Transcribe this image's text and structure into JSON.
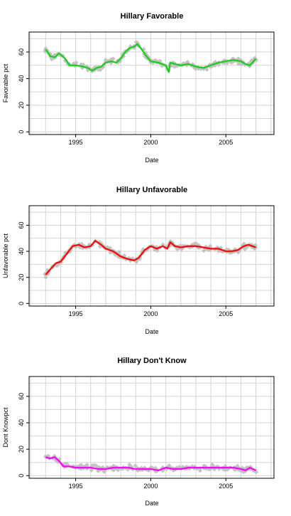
{
  "colors": {
    "points": "#c4c4c4",
    "grid": "#d3d3d3",
    "axis": "#000000",
    "series": [
      "#22cc22",
      "#ee1111",
      "#ee11ee"
    ]
  },
  "chart_data": [
    {
      "type": "scatter",
      "title": "Hillary Favorable",
      "xlabel": "Date",
      "ylabel": "Favorable pct",
      "xlim": [
        1991.9,
        2008.2
      ],
      "ylim": [
        -2,
        75
      ],
      "x_ticks": [
        1995,
        2000,
        2005
      ],
      "y_ticks": [
        0,
        20,
        40,
        60
      ],
      "grid": true,
      "smooth": {
        "x": [
          1993.0,
          1993.3,
          1993.6,
          1993.9,
          1994.3,
          1994.6,
          1995.0,
          1995.5,
          1995.8,
          1996.1,
          1996.4,
          1996.7,
          1997.0,
          1997.4,
          1997.7,
          1998.0,
          1998.3,
          1998.6,
          1998.9,
          1999.1,
          1999.4,
          1999.7,
          2000.0,
          2000.5,
          2001.0,
          2001.2,
          2001.3,
          2001.6,
          2002.0,
          2002.5,
          2003.0,
          2003.5,
          2004.0,
          2004.5,
          2005.0,
          2005.5,
          2006.0,
          2006.3,
          2006.6,
          2007.0
        ],
        "y": [
          62,
          57,
          56,
          59,
          55,
          50,
          50,
          49,
          48,
          46,
          48,
          49,
          52,
          53,
          52,
          55,
          60,
          63,
          64,
          66,
          62,
          57,
          53,
          52,
          50,
          45,
          52,
          51,
          50,
          51,
          49,
          48,
          50,
          52,
          53,
          54,
          53,
          51,
          50,
          55
        ]
      }
    },
    {
      "type": "scatter",
      "title": "Hillary Unfavorable",
      "xlabel": "Date",
      "ylabel": "Unfavorable pct",
      "xlim": [
        1991.9,
        2008.2
      ],
      "ylim": [
        -2,
        75
      ],
      "x_ticks": [
        1995,
        2000,
        2005
      ],
      "y_ticks": [
        0,
        20,
        40,
        60
      ],
      "grid": true,
      "smooth": {
        "x": [
          1993.0,
          1993.3,
          1993.7,
          1994.0,
          1994.4,
          1994.8,
          1995.2,
          1995.6,
          1996.0,
          1996.3,
          1996.7,
          1997.0,
          1997.5,
          1998.0,
          1998.5,
          1998.9,
          1999.2,
          1999.6,
          2000.0,
          2000.4,
          2000.8,
          2001.1,
          2001.3,
          2001.6,
          2002.0,
          2002.5,
          2003.0,
          2003.5,
          2004.0,
          2004.5,
          2005.0,
          2005.4,
          2005.8,
          2006.2,
          2006.5,
          2007.0
        ],
        "y": [
          22,
          26,
          31,
          32,
          38,
          44,
          45,
          43,
          44,
          48,
          45,
          42,
          40,
          36,
          34,
          33,
          35,
          41,
          44,
          42,
          44,
          42,
          47,
          44,
          43,
          44,
          44,
          43,
          42,
          42,
          40,
          40,
          41,
          44,
          45,
          43
        ]
      }
    },
    {
      "type": "scatter",
      "title": "Hillary Don't Know",
      "xlabel": "Date",
      "ylabel": "Dont Knowpct",
      "xlim": [
        1991.9,
        2008.2
      ],
      "ylim": [
        -2,
        75
      ],
      "x_ticks": [
        1995,
        2000,
        2005
      ],
      "y_ticks": [
        0,
        20,
        40,
        60
      ],
      "grid": true,
      "smooth": {
        "x": [
          1993.0,
          1993.3,
          1993.6,
          1993.9,
          1994.2,
          1994.6,
          1995.0,
          1995.5,
          1996.0,
          1996.5,
          1997.0,
          1997.5,
          1998.0,
          1998.5,
          1999.0,
          1999.5,
          2000.0,
          2000.5,
          2001.0,
          2001.5,
          2002.0,
          2002.5,
          2003.0,
          2003.5,
          2004.0,
          2004.5,
          2005.0,
          2005.5,
          2006.0,
          2006.3,
          2006.6,
          2007.0
        ],
        "y": [
          14,
          13,
          14,
          11,
          7,
          7,
          6,
          6,
          6,
          5,
          5,
          6,
          6,
          6,
          5,
          5,
          5,
          4,
          6,
          5,
          5,
          6,
          6,
          6,
          6,
          6,
          6,
          6,
          5,
          4,
          6,
          4
        ]
      }
    }
  ]
}
